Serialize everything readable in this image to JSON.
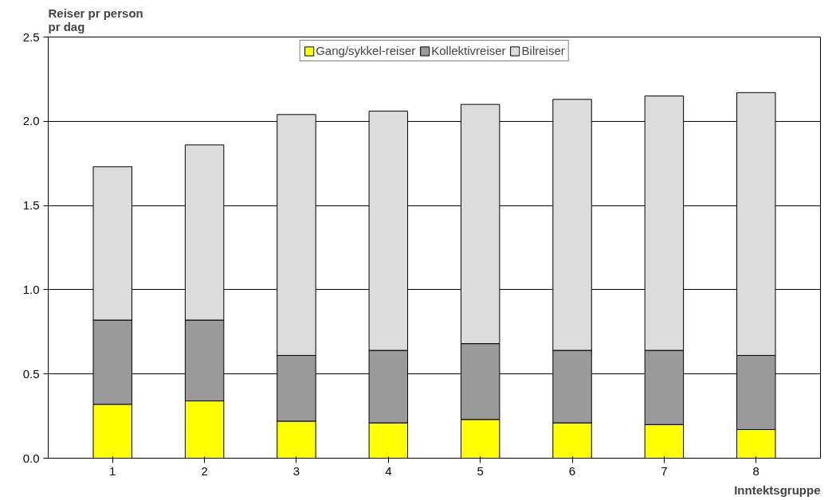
{
  "chart_data": {
    "type": "bar",
    "stacked": true,
    "ylabel": "Reiser pr person pr dag",
    "xlabel": "Inntektsgruppe",
    "categories": [
      "1",
      "2",
      "3",
      "4",
      "5",
      "6",
      "7",
      "8"
    ],
    "series": [
      {
        "name": "Gang/sykkel-reiser",
        "color": "#ffff00",
        "values": [
          0.32,
          0.34,
          0.22,
          0.21,
          0.23,
          0.21,
          0.2,
          0.17
        ]
      },
      {
        "name": "Kollektivreiser",
        "color": "#9a9a9a",
        "values": [
          0.5,
          0.48,
          0.39,
          0.43,
          0.45,
          0.43,
          0.44,
          0.44
        ]
      },
      {
        "name": "Bilreiser",
        "color": "#dcdcdc",
        "values": [
          0.91,
          1.04,
          1.43,
          1.42,
          1.42,
          1.49,
          1.51,
          1.56
        ]
      }
    ],
    "ylim": [
      0,
      2.5
    ],
    "yticks": [
      {
        "value": 0,
        "label": "0.0"
      },
      {
        "value": 0.5,
        "label": "0.5"
      },
      {
        "value": 1,
        "label": "1.0"
      },
      {
        "value": 1.5,
        "label": "1.5"
      },
      {
        "value": 2,
        "label": "2.0"
      },
      {
        "value": 2.5,
        "label": "2.5"
      }
    ],
    "grid": "y",
    "legend": "top"
  }
}
